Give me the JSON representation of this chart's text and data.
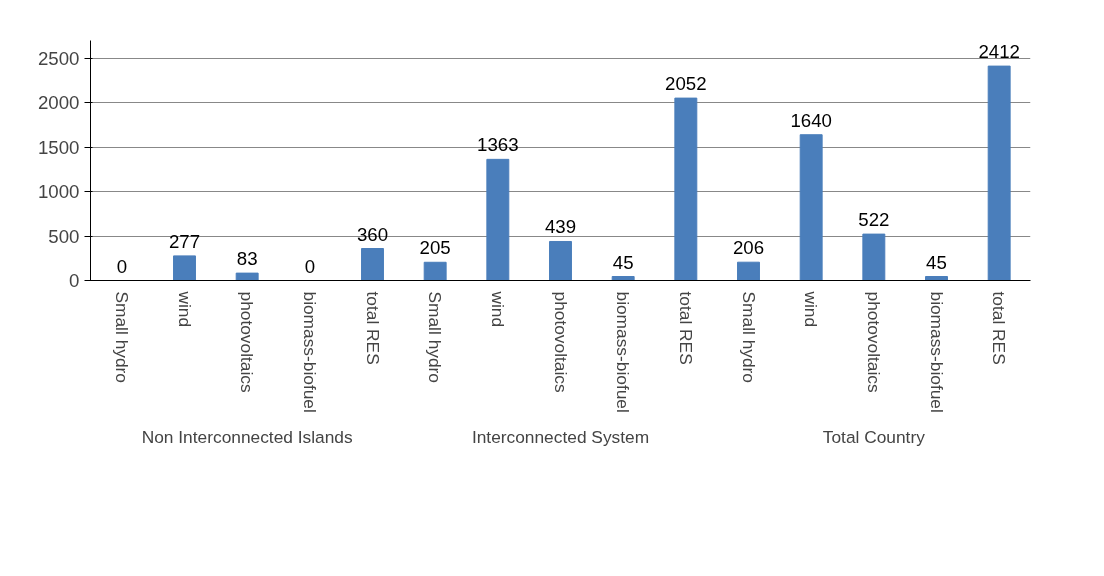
{
  "chart_data": {
    "type": "bar",
    "categories": [
      "Small hydro",
      "wind",
      "photovoltaics",
      "biomass-biofuel",
      "total RES",
      "Small hydro",
      "wind",
      "photovoltaics",
      "biomass-biofuel",
      "total RES",
      "Small hydro",
      "wind",
      "photovoltaics",
      "biomass-biofuel",
      "total RES"
    ],
    "values": [
      0,
      277,
      83,
      0,
      360,
      205,
      1363,
      439,
      45,
      2052,
      206,
      1640,
      522,
      45,
      2412
    ],
    "color": "#4a7ebb",
    "ylim": [
      0,
      2700
    ],
    "yticks": [
      0,
      500,
      1000,
      1500,
      2000,
      2500
    ],
    "grid": "y",
    "data_labels": true,
    "annotations": [
      "Non Interconnected Islands",
      "Interconnected System",
      "Total Country"
    ]
  }
}
